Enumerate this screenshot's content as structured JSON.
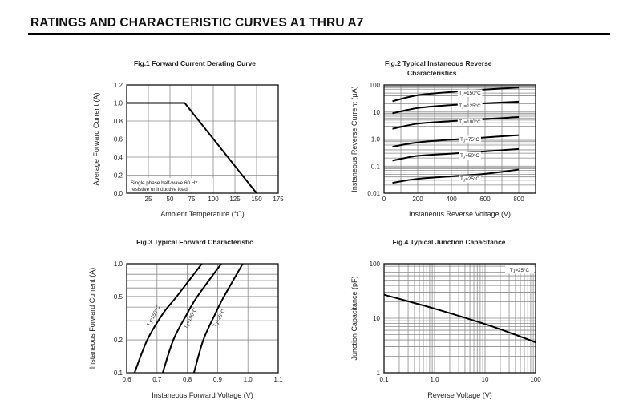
{
  "page_title": "RATINGS AND CHARACTERISTIC CURVES A1 THRU A7",
  "chart_data": [
    {
      "type": "line",
      "title": [
        "Fig.1  Forward Current Derating Curve"
      ],
      "xlabel": "Ambient Temperature (°C)",
      "ylabel": "Average Forward Current (A)",
      "xscale": "linear",
      "xlim": [
        0,
        175
      ],
      "yscale": "linear",
      "ylim": [
        0,
        1.2
      ],
      "grid": true,
      "x_grid_step": 25,
      "y_grid_step": 0.2,
      "xticks": [
        {
          "v": 25,
          "label": "25"
        },
        {
          "v": 50,
          "label": "50"
        },
        {
          "v": 75,
          "label": "75"
        },
        {
          "v": 100,
          "label": "100"
        },
        {
          "v": 125,
          "label": "125"
        },
        {
          "v": 150,
          "label": "150"
        },
        {
          "v": 175,
          "label": "175"
        }
      ],
      "yticks": [
        {
          "v": 0,
          "label": "0.0"
        },
        {
          "v": 0.2,
          "label": "0.2"
        },
        {
          "v": 0.4,
          "label": "0.4"
        },
        {
          "v": 0.6,
          "label": "0.6"
        },
        {
          "v": 0.8,
          "label": "0.8"
        },
        {
          "v": 1.0,
          "label": "1.0"
        },
        {
          "v": 1.2,
          "label": "1.2"
        }
      ],
      "series": [
        {
          "name": "derating",
          "x": [
            0,
            67,
            150
          ],
          "y": [
            1.0,
            1.0,
            0.0
          ]
        }
      ],
      "annotations": [
        "Single phase half-wave 60 Hz",
        "resistive or inductive load"
      ]
    },
    {
      "type": "line",
      "title": [
        "Fig.2  Typical Instaneous Reverse",
        "Characteristics"
      ],
      "xlabel": "Instaneous Reverse Voltage (V)",
      "ylabel": "Instaneous Reverse Current (μA)",
      "xscale": "linear",
      "xlim": [
        0,
        900
      ],
      "yscale": "log",
      "ylim": [
        0.01,
        100
      ],
      "grid": true,
      "x_grid_step": 100,
      "xticks": [
        {
          "v": 0,
          "label": "0"
        },
        {
          "v": 200,
          "label": "200"
        },
        {
          "v": 400,
          "label": "400"
        },
        {
          "v": 600,
          "label": "600"
        },
        {
          "v": 800,
          "label": "800"
        }
      ],
      "yticks": [
        {
          "v": 0.01,
          "label": "0.01"
        },
        {
          "v": 0.1,
          "label": "0.1"
        },
        {
          "v": 1,
          "label": "1.0"
        },
        {
          "v": 10,
          "label": "10"
        },
        {
          "v": 100,
          "label": "100"
        }
      ],
      "series": [
        {
          "name": "TJ=150°C",
          "x": [
            50,
            200,
            400,
            600,
            800
          ],
          "y": [
            25,
            42,
            55,
            68,
            80
          ]
        },
        {
          "name": "TJ=125°C",
          "x": [
            50,
            200,
            400,
            600,
            800
          ],
          "y": [
            9,
            14,
            18,
            21,
            24
          ]
        },
        {
          "name": "TJ=100°C",
          "x": [
            50,
            200,
            400,
            600,
            800
          ],
          "y": [
            2.4,
            3.7,
            4.6,
            5.5,
            6.5
          ]
        },
        {
          "name": "TJ=75°C",
          "x": [
            50,
            200,
            400,
            600,
            800
          ],
          "y": [
            0.52,
            0.75,
            0.95,
            1.15,
            1.4
          ]
        },
        {
          "name": "TJ=50°C",
          "x": [
            50,
            200,
            400,
            600,
            800
          ],
          "y": [
            0.16,
            0.24,
            0.29,
            0.35,
            0.43
          ]
        },
        {
          "name": "TJ=25°C",
          "x": [
            50,
            200,
            400,
            600,
            800
          ],
          "y": [
            0.024,
            0.034,
            0.042,
            0.052,
            0.075
          ]
        }
      ]
    },
    {
      "type": "line",
      "title": [
        "Fig.3  Typical Forward Characteristic"
      ],
      "xlabel": "Instaneous Forward Voltage (V)",
      "ylabel": "Instaneous Forward Current  (A)",
      "xscale": "linear",
      "xlim": [
        0.6,
        1.1
      ],
      "yscale": "log",
      "ylim": [
        0.1,
        1.0
      ],
      "grid": true,
      "x_grid_step": 0.1,
      "xticks": [
        {
          "v": 0.6,
          "label": "0.6"
        },
        {
          "v": 0.7,
          "label": "0.7"
        },
        {
          "v": 0.8,
          "label": "0.8"
        },
        {
          "v": 0.9,
          "label": "0.9"
        },
        {
          "v": 1.0,
          "label": "1.0"
        },
        {
          "v": 1.1,
          "label": "1.1"
        }
      ],
      "yticks": [
        {
          "v": 0.1,
          "label": "0.1"
        },
        {
          "v": 0.2,
          "label": "0.2"
        },
        {
          "v": 0.5,
          "label": "0.5"
        },
        {
          "v": 1.0,
          "label": "1.0"
        }
      ],
      "series": [
        {
          "name": "TJ=150°C",
          "x": [
            0.626,
            0.668,
            0.72,
            0.765,
            0.848
          ],
          "y": [
            0.1,
            0.2,
            0.35,
            0.5,
            1.0
          ]
        },
        {
          "name": "TJ=100°C",
          "x": [
            0.719,
            0.754,
            0.8,
            0.833,
            0.912
          ],
          "y": [
            0.1,
            0.2,
            0.35,
            0.5,
            1.0
          ]
        },
        {
          "name": "TJ=25°C",
          "x": [
            0.822,
            0.853,
            0.893,
            0.921,
            0.983
          ],
          "y": [
            0.1,
            0.2,
            0.35,
            0.5,
            1.0
          ]
        }
      ]
    },
    {
      "type": "line",
      "title": [
        "Fig.4  Typical Junction Capacitance"
      ],
      "xlabel": "Reverse  Voltage (V)",
      "ylabel": "Junction Capacitance (pF)",
      "xscale": "log",
      "xlim": [
        0.1,
        100
      ],
      "yscale": "log",
      "ylim": [
        1,
        100
      ],
      "grid": true,
      "xticks": [
        {
          "v": 0.1,
          "label": "0.1"
        },
        {
          "v": 1,
          "label": "1.0"
        },
        {
          "v": 10,
          "label": "10"
        },
        {
          "v": 100,
          "label": "100"
        }
      ],
      "yticks": [
        {
          "v": 1,
          "label": "1"
        },
        {
          "v": 10,
          "label": "10"
        },
        {
          "v": 100,
          "label": "100"
        }
      ],
      "series": [
        {
          "name": "TJ=25°C",
          "x": [
            0.1,
            1,
            10,
            50,
            100
          ],
          "y": [
            27,
            15,
            7.8,
            4.6,
            3.6
          ]
        }
      ]
    }
  ]
}
